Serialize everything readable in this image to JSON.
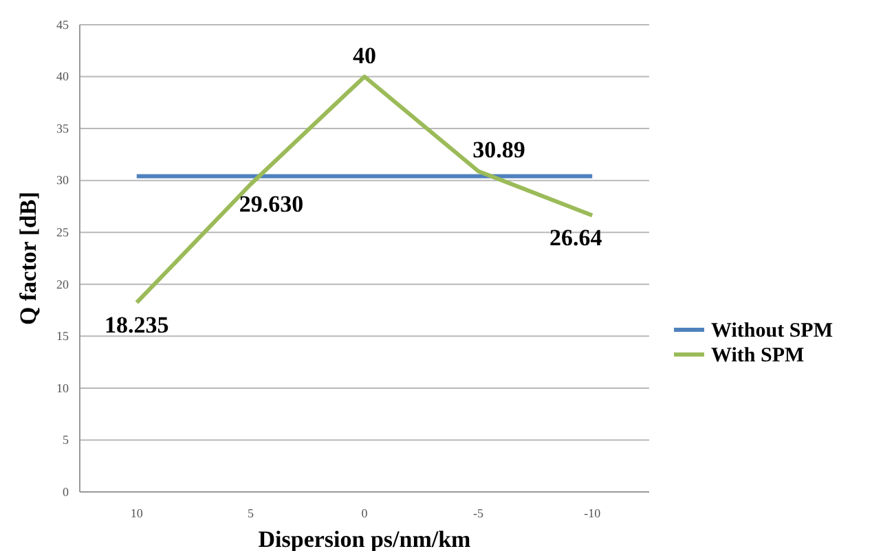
{
  "chart_data": {
    "type": "line",
    "xlabel": "Dispersion ps/nm/km",
    "ylabel": "Q factor [dB]",
    "categories": [
      "10",
      "5",
      "0",
      "-5",
      "-10"
    ],
    "series": [
      {
        "name": "Without SPM",
        "color": "#4f81bd",
        "values": [
          30.4,
          30.4,
          30.4,
          30.4,
          30.4
        ]
      },
      {
        "name": "With SPM",
        "color": "#9bbb59",
        "values": [
          18.235,
          29.63,
          40,
          30.89,
          26.64
        ],
        "value_labels": [
          "18.235",
          "29.630",
          "40",
          "30.89",
          "26.64"
        ]
      }
    ],
    "ylim": [
      0,
      45
    ],
    "yticks": [
      0,
      5,
      10,
      15,
      20,
      25,
      30,
      35,
      40,
      45
    ],
    "grid": "y",
    "legend": "right",
    "marker": "none",
    "line_style": "solid"
  }
}
